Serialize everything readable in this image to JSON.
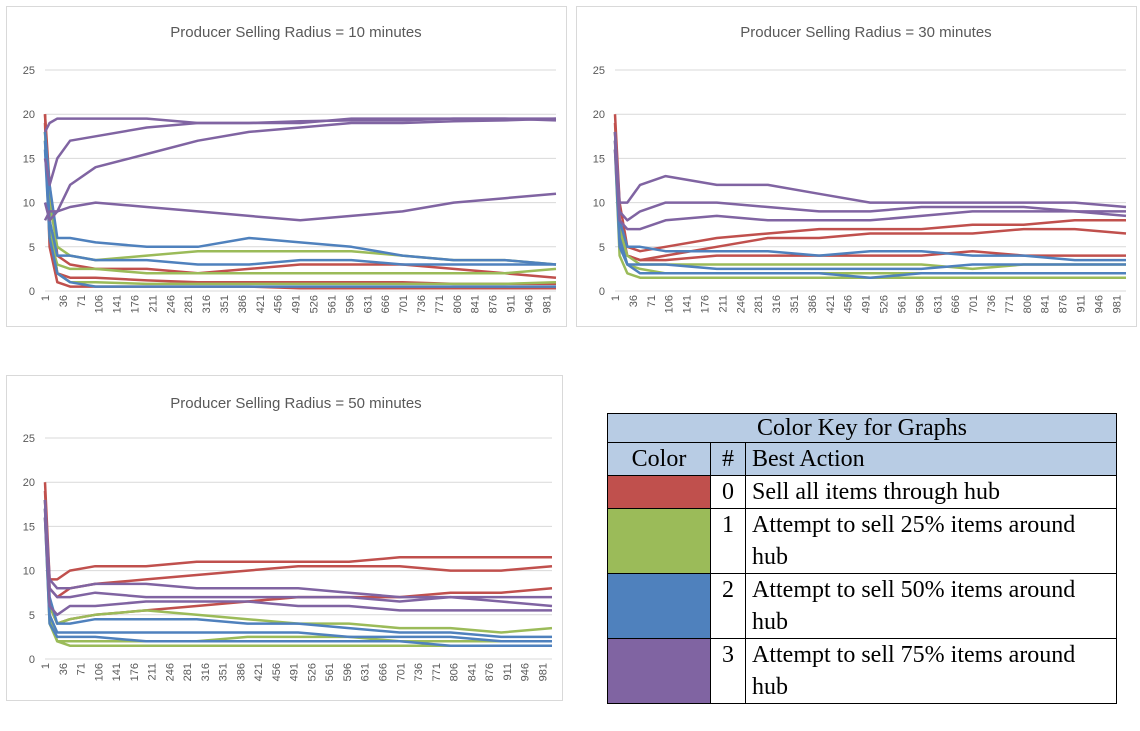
{
  "chart_data": [
    {
      "type": "line",
      "title": "Producer Selling Radius = 10 minutes",
      "x": [
        1,
        10,
        25,
        50,
        100,
        200,
        300,
        400,
        500,
        600,
        700,
        800,
        900,
        1000
      ],
      "xlim": [
        1,
        1000
      ],
      "xticks": [
        1,
        36,
        71,
        106,
        141,
        176,
        211,
        246,
        281,
        316,
        351,
        386,
        421,
        456,
        491,
        526,
        561,
        596,
        631,
        666,
        701,
        736,
        771,
        806,
        841,
        876,
        911,
        946,
        981
      ],
      "ylim": [
        0,
        25
      ],
      "yticks": [
        0,
        5,
        10,
        15,
        20,
        25
      ],
      "grid": true,
      "series": [
        {
          "color": "#c0504d",
          "values": [
            20,
            8,
            2,
            1.5,
            1.5,
            1.2,
            1,
            1,
            1,
            1,
            1,
            0.8,
            0.8,
            0.8
          ]
        },
        {
          "color": "#c0504d",
          "values": [
            20,
            12,
            4,
            3,
            2.5,
            2.5,
            2,
            2.5,
            3,
            3,
            3,
            2.5,
            2,
            1.5
          ]
        },
        {
          "color": "#c0504d",
          "values": [
            19,
            5,
            1,
            0.5,
            0.5,
            0.5,
            0.5,
            0.5,
            0.3,
            0.3,
            0.3,
            0.3,
            0.3,
            0.3
          ]
        },
        {
          "color": "#9bbb59",
          "values": [
            18,
            10,
            5,
            4,
            3.5,
            4,
            4.5,
            4.5,
            4.5,
            4.5,
            4,
            3.5,
            3.5,
            3
          ]
        },
        {
          "color": "#9bbb59",
          "values": [
            17,
            6,
            3,
            2.5,
            2.5,
            2,
            2,
            2,
            2,
            2,
            2,
            2,
            2,
            2.5
          ]
        },
        {
          "color": "#9bbb59",
          "values": [
            18,
            8,
            2,
            1,
            1,
            0.8,
            0.8,
            0.8,
            0.8,
            0.8,
            0.8,
            0.8,
            0.8,
            1
          ]
        },
        {
          "color": "#4f81bd",
          "values": [
            18,
            12,
            6,
            6,
            5.5,
            5,
            5,
            6,
            5.5,
            5,
            4,
            3.5,
            3.5,
            3
          ]
        },
        {
          "color": "#4f81bd",
          "values": [
            17,
            8,
            4,
            4,
            3.5,
            3.5,
            3,
            3,
            3.5,
            3.5,
            3,
            3,
            3,
            3
          ]
        },
        {
          "color": "#4f81bd",
          "values": [
            16,
            6,
            2,
            1,
            0.5,
            0.5,
            0.5,
            0.5,
            0.5,
            0.5,
            0.5,
            0.5,
            0.5,
            0.5
          ]
        },
        {
          "color": "#8064a2",
          "values": [
            18,
            19,
            19.5,
            19.5,
            19.5,
            19.5,
            19,
            19,
            19,
            19.5,
            19.5,
            19.5,
            19.5,
            19.5
          ]
        },
        {
          "color": "#8064a2",
          "values": [
            15,
            12,
            15,
            17,
            17.5,
            18.5,
            19,
            19,
            19.2,
            19.3,
            19.3,
            19.5,
            19.5,
            19.3
          ]
        },
        {
          "color": "#8064a2",
          "values": [
            10,
            8,
            9,
            12,
            14,
            15.5,
            17,
            18,
            18.5,
            19,
            19,
            19.2,
            19.3,
            19.5
          ]
        },
        {
          "color": "#8064a2",
          "values": [
            8,
            9,
            9,
            9.5,
            10,
            9.5,
            9,
            8.5,
            8,
            8.5,
            9,
            10,
            10.5,
            11
          ]
        }
      ]
    },
    {
      "type": "line",
      "title": "Producer Selling Radius = 30 minutes",
      "x": [
        1,
        10,
        25,
        50,
        100,
        200,
        300,
        400,
        500,
        600,
        700,
        800,
        900,
        1000
      ],
      "xlim": [
        1,
        1000
      ],
      "xticks": [
        1,
        36,
        71,
        106,
        141,
        176,
        211,
        246,
        281,
        316,
        351,
        386,
        421,
        456,
        491,
        526,
        561,
        596,
        631,
        666,
        701,
        736,
        771,
        806,
        841,
        876,
        911,
        946,
        981
      ],
      "ylim": [
        0,
        25
      ],
      "yticks": [
        0,
        5,
        10,
        15,
        20,
        25
      ],
      "grid": true,
      "series": [
        {
          "color": "#c0504d",
          "values": [
            20,
            10,
            5,
            4.5,
            5,
            6,
            6.5,
            7,
            7,
            7,
            7.5,
            7.5,
            8,
            8
          ]
        },
        {
          "color": "#c0504d",
          "values": [
            19,
            8,
            4,
            3.5,
            4,
            5,
            6,
            6,
            6.5,
            6.5,
            6.5,
            7,
            7,
            6.5
          ]
        },
        {
          "color": "#c0504d",
          "values": [
            18,
            6,
            4,
            3.5,
            3.5,
            4,
            4,
            4,
            4,
            4,
            4.5,
            4,
            4,
            4
          ]
        },
        {
          "color": "#9bbb59",
          "values": [
            17,
            6,
            3,
            2.5,
            2,
            2,
            2,
            2,
            2,
            2,
            2,
            2,
            2,
            2
          ]
        },
        {
          "color": "#9bbb59",
          "values": [
            16,
            4,
            2,
            1.5,
            1.5,
            1.5,
            1.5,
            1.5,
            1.5,
            1.5,
            1.5,
            1.5,
            1.5,
            1.5
          ]
        },
        {
          "color": "#9bbb59",
          "values": [
            18,
            7,
            4,
            3,
            3,
            3,
            3,
            3,
            3,
            3,
            2.5,
            3,
            3,
            3
          ]
        },
        {
          "color": "#4f81bd",
          "values": [
            18,
            8,
            5,
            5,
            4.5,
            4.5,
            4.5,
            4,
            4.5,
            4.5,
            4,
            4,
            3.5,
            3.5
          ]
        },
        {
          "color": "#4f81bd",
          "values": [
            17,
            6,
            3,
            3,
            3,
            2.5,
            2.5,
            2.5,
            2.5,
            2.5,
            3,
            3,
            3,
            3
          ]
        },
        {
          "color": "#4f81bd",
          "values": [
            16,
            5,
            3,
            2,
            2,
            2,
            2,
            2,
            1.5,
            2,
            2,
            2,
            2,
            2
          ]
        },
        {
          "color": "#8064a2",
          "values": [
            18,
            10,
            10,
            12,
            13,
            12,
            12,
            11,
            10,
            10,
            10,
            10,
            10,
            9.5
          ]
        },
        {
          "color": "#8064a2",
          "values": [
            17,
            9,
            8,
            9,
            10,
            10,
            9.5,
            9,
            9,
            9.5,
            9.5,
            9.5,
            9,
            9
          ]
        },
        {
          "color": "#8064a2",
          "values": [
            16,
            8,
            7,
            7,
            8,
            8.5,
            8,
            8,
            8,
            8.5,
            9,
            9,
            9,
            8.5
          ]
        }
      ]
    },
    {
      "type": "line",
      "title": "Producer Selling Radius = 50 minutes",
      "x": [
        1,
        10,
        25,
        50,
        100,
        200,
        300,
        400,
        500,
        600,
        700,
        800,
        900,
        1000
      ],
      "xlim": [
        1,
        1000
      ],
      "xticks": [
        1,
        36,
        71,
        106,
        141,
        176,
        211,
        246,
        281,
        316,
        351,
        386,
        421,
        456,
        491,
        526,
        561,
        596,
        631,
        666,
        701,
        736,
        771,
        806,
        841,
        876,
        911,
        946,
        981
      ],
      "ylim": [
        0,
        25
      ],
      "yticks": [
        0,
        5,
        10,
        15,
        20,
        25
      ],
      "grid": true,
      "series": [
        {
          "color": "#c0504d",
          "values": [
            20,
            9,
            9,
            10,
            10.5,
            10.5,
            11,
            11,
            11,
            11,
            11.5,
            11.5,
            11.5,
            11.5
          ]
        },
        {
          "color": "#c0504d",
          "values": [
            19,
            8,
            7,
            8,
            8.5,
            9,
            9.5,
            10,
            10.5,
            10.5,
            10.5,
            10,
            10,
            10.5
          ]
        },
        {
          "color": "#c0504d",
          "values": [
            18,
            6,
            4,
            4.5,
            5,
            5.5,
            6,
            6.5,
            7,
            7,
            7,
            7.5,
            7.5,
            8
          ]
        },
        {
          "color": "#9bbb59",
          "values": [
            17,
            6,
            4,
            4.5,
            5,
            5.5,
            5,
            4.5,
            4,
            4,
            3.5,
            3.5,
            3,
            3.5
          ]
        },
        {
          "color": "#9bbb59",
          "values": [
            16,
            4,
            2,
            2,
            2,
            2,
            2,
            2.5,
            2.5,
            2.5,
            2,
            2,
            2,
            2
          ]
        },
        {
          "color": "#9bbb59",
          "values": [
            18,
            5,
            2,
            1.5,
            1.5,
            1.5,
            1.5,
            1.5,
            1.5,
            1.5,
            1.5,
            1.5,
            1.5,
            1.5
          ]
        },
        {
          "color": "#4f81bd",
          "values": [
            18,
            7,
            4,
            4,
            4.5,
            4.5,
            4.5,
            4,
            4,
            3.5,
            3,
            3,
            2.5,
            2.5
          ]
        },
        {
          "color": "#4f81bd",
          "values": [
            17,
            5,
            3,
            3,
            3,
            3,
            3,
            3,
            3,
            2.5,
            2.5,
            2.5,
            2,
            2
          ]
        },
        {
          "color": "#4f81bd",
          "values": [
            16,
            4,
            2.5,
            2.5,
            2.5,
            2,
            2,
            2,
            2,
            2,
            2,
            1.5,
            1.5,
            1.5
          ]
        },
        {
          "color": "#8064a2",
          "values": [
            18,
            9,
            8,
            8,
            8.5,
            8.5,
            8,
            8,
            8,
            7.5,
            7,
            7,
            7,
            7
          ]
        },
        {
          "color": "#8064a2",
          "values": [
            17,
            8,
            7,
            7,
            7.5,
            7,
            7,
            7,
            7,
            7,
            6.5,
            7,
            6.5,
            6
          ]
        },
        {
          "color": "#8064a2",
          "values": [
            16,
            6,
            5,
            6,
            6,
            6.5,
            6.5,
            6.5,
            6,
            6,
            5.5,
            5.5,
            5.5,
            5.5
          ]
        }
      ]
    }
  ],
  "table": {
    "title": "Color Key for Graphs",
    "columns": [
      "Color",
      "#",
      "Best Action"
    ],
    "rows": [
      {
        "color": "#c0504d",
        "number": 0,
        "action": "Sell all items through hub"
      },
      {
        "color": "#9bbb59",
        "number": 1,
        "action": "Attempt to sell 25% items around hub"
      },
      {
        "color": "#4f81bd",
        "number": 2,
        "action": "Attempt to sell 50% items around hub"
      },
      {
        "color": "#8064a2",
        "number": 3,
        "action": "Attempt to sell 75% items around hub"
      }
    ]
  }
}
